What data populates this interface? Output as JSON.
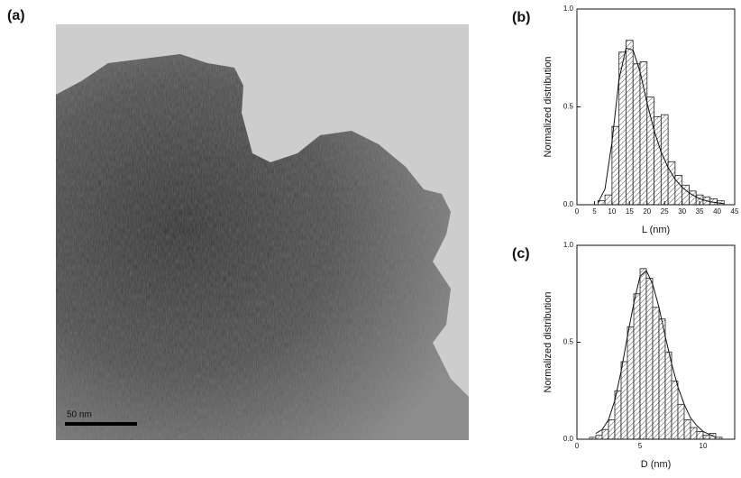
{
  "image": {
    "panel_label": "(a)",
    "scale_bar": "50 nm"
  },
  "chart_data": [
    {
      "type": "histogram",
      "panel_label": "(b)",
      "x_label": "L (nm)",
      "y_label": "Normalized distribution",
      "bins": [
        6,
        8,
        10,
        12,
        14,
        16,
        18,
        20,
        22,
        24,
        26,
        28,
        30,
        32,
        34,
        36,
        38,
        40,
        42
      ],
      "values": [
        0.02,
        0.05,
        0.4,
        0.78,
        0.84,
        0.72,
        0.73,
        0.55,
        0.45,
        0.46,
        0.22,
        0.15,
        0.1,
        0.07,
        0.05,
        0.04,
        0.03,
        0.02
      ],
      "curve": {
        "x": [
          6,
          8,
          10,
          12,
          14,
          16,
          18,
          20,
          22,
          24,
          26,
          28,
          30,
          32,
          35,
          38,
          42
        ],
        "y": [
          0.01,
          0.08,
          0.32,
          0.64,
          0.8,
          0.79,
          0.68,
          0.52,
          0.38,
          0.27,
          0.19,
          0.13,
          0.09,
          0.06,
          0.03,
          0.015,
          0.005
        ]
      },
      "xlim": [
        0,
        45
      ],
      "xticks": [
        0,
        5,
        10,
        15,
        20,
        25,
        30,
        35,
        40,
        45
      ],
      "ylim": [
        0,
        1
      ],
      "yticks": [
        {
          "value": 0,
          "label": "0.0"
        },
        {
          "value": 0.5,
          "label": "0.5"
        },
        {
          "value": 1,
          "label": "1.0"
        }
      ]
    },
    {
      "type": "histogram",
      "panel_label": "(c)",
      "x_label": "D (nm)",
      "y_label": "Normalized distribution",
      "bins": [
        1,
        1.5,
        2,
        2.5,
        3,
        3.5,
        4,
        4.5,
        5,
        5.5,
        6,
        6.5,
        7,
        7.5,
        8,
        8.5,
        9,
        9.5,
        10,
        10.5,
        11,
        11.5
      ],
      "values": [
        0.01,
        0.02,
        0.05,
        0.1,
        0.25,
        0.4,
        0.58,
        0.75,
        0.88,
        0.83,
        0.68,
        0.62,
        0.45,
        0.3,
        0.18,
        0.1,
        0.06,
        0.04,
        0.02,
        0.03,
        0.01
      ],
      "curve": {
        "x": [
          1.5,
          2,
          2.5,
          3,
          3.5,
          4,
          4.5,
          5,
          5.5,
          6,
          6.5,
          7,
          7.5,
          8,
          8.5,
          9,
          9.5,
          10,
          11
        ],
        "y": [
          0.03,
          0.05,
          0.1,
          0.2,
          0.35,
          0.53,
          0.7,
          0.84,
          0.87,
          0.8,
          0.68,
          0.53,
          0.39,
          0.27,
          0.18,
          0.11,
          0.07,
          0.04,
          0.01
        ]
      },
      "xlim": [
        0,
        12.5
      ],
      "xticks": [
        0,
        5,
        10
      ],
      "ylim": [
        0,
        1
      ],
      "yticks": [
        {
          "value": 0,
          "label": "0.0"
        },
        {
          "value": 0.5,
          "label": "0.5"
        },
        {
          "value": 1,
          "label": "1.0"
        }
      ]
    }
  ]
}
